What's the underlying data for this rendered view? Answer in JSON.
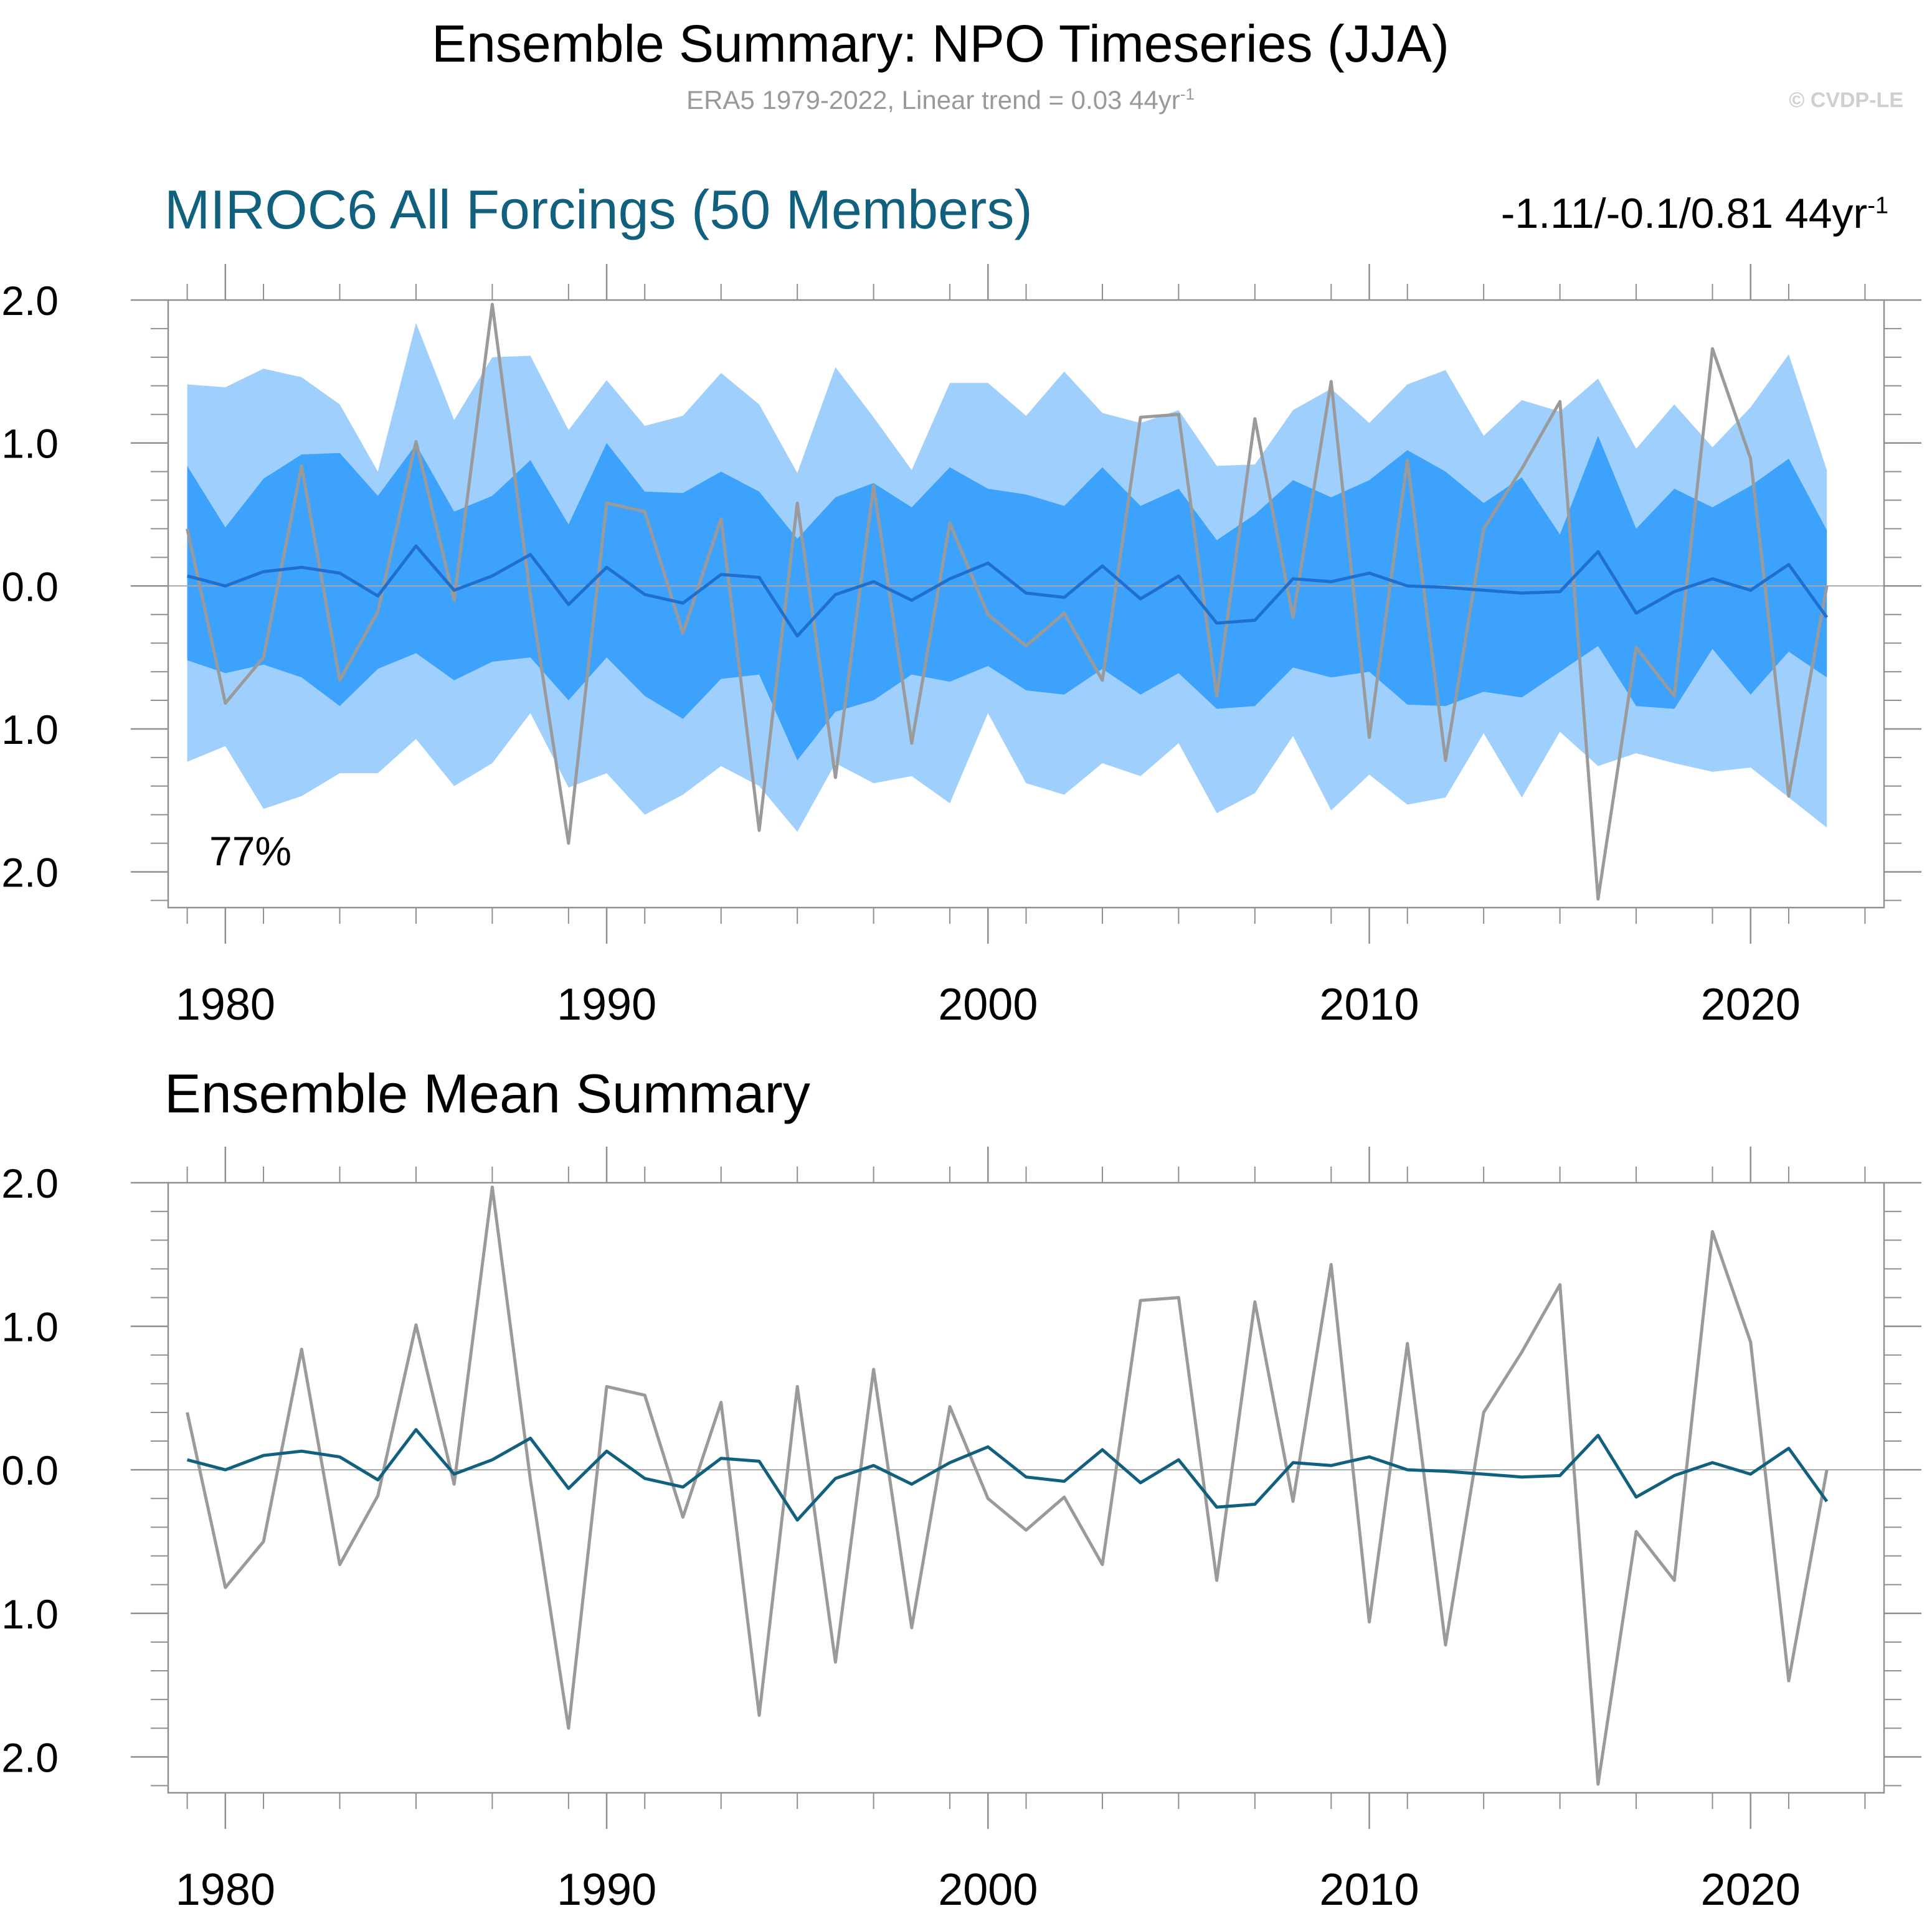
{
  "title": "Ensemble Summary: NPO Timeseries (JJA)",
  "subtitle": {
    "text": "ERA5 1979-2022, Linear trend = 0.03 44yr",
    "superscript": "-1"
  },
  "copyright": "© CVDP-LE",
  "colors": {
    "band_outer": "#9fcffc",
    "band_inner": "#3da2fc",
    "ensemble_mean": "#1f6fd0",
    "ensemble_mean_lower": "#11617e",
    "observations": "#9a9a9a",
    "title_blue": "#11617e"
  },
  "panels": [
    {
      "title": "MIROC6 All Forcings (50 Members)",
      "trend_text": "-1.11/-0.1/0.81 44yr",
      "trend_superscript": "-1",
      "annotation": "77%"
    },
    {
      "title": "Ensemble Mean Summary"
    }
  ],
  "chart_data": [
    {
      "type": "area",
      "xlim": [
        1978.5,
        2023.5
      ],
      "ylim": [
        -2.25,
        2.0
      ],
      "yticks": [
        2.0,
        1.0,
        0.0,
        -1.0,
        -2.0
      ],
      "ytick_labels": [
        "2.0",
        "1.0",
        "0.0",
        "-1.0",
        "-2.0"
      ],
      "xticks": [
        1980,
        1990,
        2000,
        2010,
        2020
      ],
      "xtick_labels": [
        "1980",
        "1990",
        "2000",
        "2010",
        "2020"
      ],
      "x": [
        1979,
        1980,
        1981,
        1982,
        1983,
        1984,
        1985,
        1986,
        1987,
        1988,
        1989,
        1990,
        1991,
        1992,
        1993,
        1994,
        1995,
        1996,
        1997,
        1998,
        1999,
        2000,
        2001,
        2002,
        2003,
        2004,
        2005,
        2006,
        2007,
        2008,
        2009,
        2010,
        2011,
        2012,
        2013,
        2014,
        2015,
        2016,
        2017,
        2018,
        2019,
        2020,
        2021,
        2022
      ],
      "band_outer_upper": [
        1.41,
        1.39,
        1.52,
        1.46,
        1.27,
        0.8,
        1.84,
        1.16,
        1.6,
        1.61,
        1.09,
        1.44,
        1.12,
        1.19,
        1.49,
        1.27,
        0.79,
        1.53,
        1.18,
        0.81,
        1.42,
        1.42,
        1.19,
        1.5,
        1.21,
        1.14,
        1.23,
        0.84,
        0.85,
        1.23,
        1.38,
        1.14,
        1.41,
        1.51,
        1.05,
        1.3,
        1.22,
        1.45,
        0.96,
        1.27,
        0.97,
        1.25,
        1.62,
        0.81
      ],
      "band_inner_upper": [
        0.84,
        0.41,
        0.75,
        0.92,
        0.93,
        0.63,
        0.99,
        0.52,
        0.63,
        0.88,
        0.43,
        1.0,
        0.66,
        0.65,
        0.8,
        0.66,
        0.33,
        0.62,
        0.72,
        0.55,
        0.83,
        0.68,
        0.64,
        0.56,
        0.83,
        0.56,
        0.68,
        0.32,
        0.5,
        0.74,
        0.62,
        0.74,
        0.95,
        0.8,
        0.58,
        0.76,
        0.36,
        1.05,
        0.4,
        0.68,
        0.55,
        0.7,
        0.89,
        0.39
      ],
      "band_inner_lower": [
        -0.52,
        -0.61,
        -0.55,
        -0.64,
        -0.84,
        -0.58,
        -0.47,
        -0.66,
        -0.53,
        -0.5,
        -0.8,
        -0.5,
        -0.77,
        -0.93,
        -0.65,
        -0.62,
        -1.22,
        -0.88,
        -0.8,
        -0.62,
        -0.67,
        -0.56,
        -0.73,
        -0.76,
        -0.58,
        -0.76,
        -0.61,
        -0.86,
        -0.84,
        -0.57,
        -0.64,
        -0.6,
        -0.83,
        -0.84,
        -0.74,
        -0.78,
        -0.6,
        -0.42,
        -0.84,
        -0.86,
        -0.44,
        -0.76,
        -0.46,
        -0.64
      ],
      "band_outer_lower": [
        -1.23,
        -1.12,
        -1.56,
        -1.47,
        -1.31,
        -1.31,
        -1.07,
        -1.4,
        -1.24,
        -0.89,
        -1.41,
        -1.31,
        -1.6,
        -1.46,
        -1.26,
        -1.4,
        -1.72,
        -1.24,
        -1.38,
        -1.33,
        -1.52,
        -0.89,
        -1.38,
        -1.46,
        -1.24,
        -1.33,
        -1.1,
        -1.59,
        -1.45,
        -1.05,
        -1.57,
        -1.32,
        -1.53,
        -1.48,
        -1.03,
        -1.48,
        -1.02,
        -1.26,
        -1.17,
        -1.24,
        -1.3,
        -1.27,
        -1.48,
        -1.69
      ],
      "series": [
        {
          "name": "MIROC6",
          "values": [
            0.07,
            0.0,
            0.1,
            0.13,
            0.09,
            -0.07,
            0.28,
            -0.03,
            0.07,
            0.22,
            -0.13,
            0.13,
            -0.06,
            -0.12,
            0.08,
            0.06,
            -0.35,
            -0.06,
            0.03,
            -0.1,
            0.05,
            0.16,
            -0.05,
            -0.08,
            0.14,
            -0.09,
            0.07,
            -0.26,
            -0.24,
            0.05,
            0.03,
            0.09,
            0.0,
            -0.01,
            -0.03,
            -0.05,
            -0.04,
            0.24,
            -0.19,
            -0.04,
            0.05,
            -0.03,
            0.15,
            -0.22
          ]
        },
        {
          "name": "ERA5",
          "values": [
            0.4,
            -0.82,
            -0.5,
            0.84,
            -0.66,
            -0.18,
            1.01,
            -0.1,
            1.97,
            -0.07,
            -1.8,
            0.58,
            0.52,
            -0.33,
            0.47,
            -1.71,
            0.58,
            -1.34,
            0.7,
            -1.1,
            0.44,
            -0.2,
            -0.42,
            -0.19,
            -0.66,
            1.18,
            1.2,
            -0.77,
            1.17,
            -0.22,
            1.43,
            -1.06,
            0.88,
            -1.22,
            0.4,
            0.82,
            1.29,
            -2.19,
            -0.43,
            -0.77,
            1.66,
            0.89,
            -1.47,
            0.0
          ]
        }
      ]
    },
    {
      "type": "line",
      "xlim": [
        1978.5,
        2023.5
      ],
      "ylim": [
        -2.25,
        2.0
      ],
      "yticks": [
        2.0,
        1.0,
        0.0,
        -1.0,
        -2.0
      ],
      "ytick_labels": [
        "2.0",
        "1.0",
        "0.0",
        "-1.0",
        "-2.0"
      ],
      "xticks": [
        1980,
        1990,
        2000,
        2010,
        2020
      ],
      "xtick_labels": [
        "1980",
        "1990",
        "2000",
        "2010",
        "2020"
      ],
      "x": [
        1979,
        1980,
        1981,
        1982,
        1983,
        1984,
        1985,
        1986,
        1987,
        1988,
        1989,
        1990,
        1991,
        1992,
        1993,
        1994,
        1995,
        1996,
        1997,
        1998,
        1999,
        2000,
        2001,
        2002,
        2003,
        2004,
        2005,
        2006,
        2007,
        2008,
        2009,
        2010,
        2011,
        2012,
        2013,
        2014,
        2015,
        2016,
        2017,
        2018,
        2019,
        2020,
        2021,
        2022
      ],
      "series": [
        {
          "name": "MIROC6",
          "values": [
            0.07,
            0.0,
            0.1,
            0.13,
            0.09,
            -0.07,
            0.28,
            -0.03,
            0.07,
            0.22,
            -0.13,
            0.13,
            -0.06,
            -0.12,
            0.08,
            0.06,
            -0.35,
            -0.06,
            0.03,
            -0.1,
            0.05,
            0.16,
            -0.05,
            -0.08,
            0.14,
            -0.09,
            0.07,
            -0.26,
            -0.24,
            0.05,
            0.03,
            0.09,
            0.0,
            -0.01,
            -0.03,
            -0.05,
            -0.04,
            0.24,
            -0.19,
            -0.04,
            0.05,
            -0.03,
            0.15,
            -0.22
          ]
        },
        {
          "name": "ERA5",
          "values": [
            0.4,
            -0.82,
            -0.5,
            0.84,
            -0.66,
            -0.18,
            1.01,
            -0.1,
            1.97,
            -0.07,
            -1.8,
            0.58,
            0.52,
            -0.33,
            0.47,
            -1.71,
            0.58,
            -1.34,
            0.7,
            -1.1,
            0.44,
            -0.2,
            -0.42,
            -0.19,
            -0.66,
            1.18,
            1.2,
            -0.77,
            1.17,
            -0.22,
            1.43,
            -1.06,
            0.88,
            -1.22,
            0.4,
            0.82,
            1.29,
            -2.19,
            -0.43,
            -0.77,
            1.66,
            0.89,
            -1.47,
            0.0
          ]
        }
      ]
    }
  ]
}
